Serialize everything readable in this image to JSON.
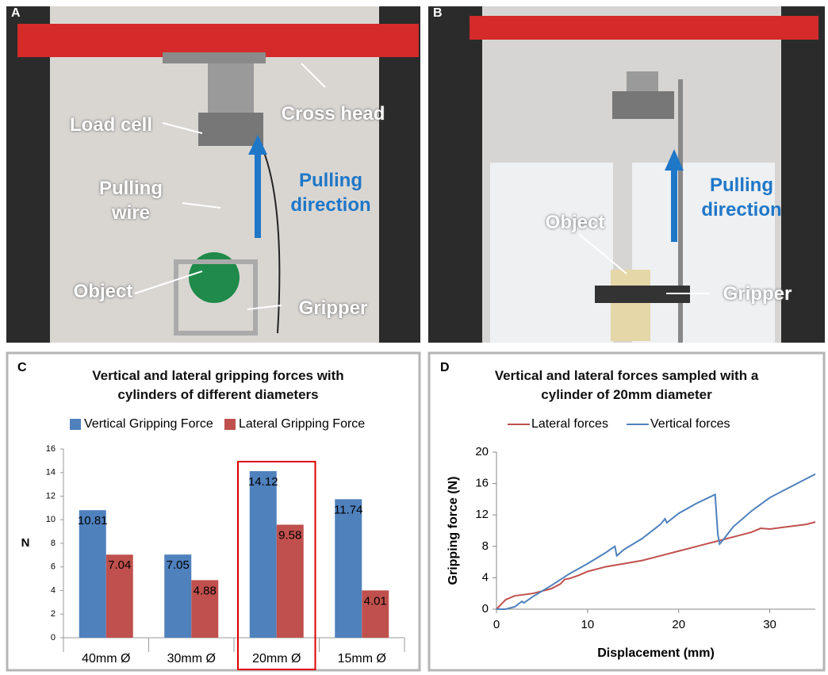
{
  "photos": [
    {
      "panel": "A",
      "labels": [
        "Cross head",
        "Load cell",
        "Pulling wire",
        "Pulling direction",
        "Object",
        "Gripper"
      ]
    },
    {
      "panel": "B",
      "labels": [
        "Pulling direction",
        "Object",
        "Gripper"
      ]
    }
  ],
  "chart_data": [
    {
      "panel": "C",
      "type": "bar",
      "title": "Vertical and lateral gripping forces with cylinders of different diameters",
      "categories": [
        "40mm Ø",
        "30mm Ø",
        "20mm Ø",
        "15mm Ø"
      ],
      "ylabel": "N",
      "ylim": [
        0,
        16
      ],
      "yticks": [
        0,
        2,
        4,
        6,
        8,
        10,
        12,
        14,
        16
      ],
      "grid": false,
      "highlight": 2,
      "series": [
        {
          "name": "Vertical Gripping Force",
          "color": "#4f81bd",
          "values": [
            10.81,
            7.05,
            14.12,
            11.74
          ]
        },
        {
          "name": "Lateral Gripping Force",
          "color": "#c0504d",
          "values": [
            7.04,
            4.88,
            9.58,
            4.01
          ]
        }
      ]
    },
    {
      "panel": "D",
      "type": "line",
      "title": "Vertical and lateral forces sampled with a cylinder of 20mm diameter",
      "xlabel": "Displacement (mm)",
      "ylabel": "Gripping force (N)",
      "xlim": [
        0,
        35
      ],
      "xticks": [
        0,
        10,
        20,
        30
      ],
      "ylim": [
        0,
        20
      ],
      "yticks": [
        0,
        4,
        8,
        12,
        16,
        20
      ],
      "grid": false,
      "series": [
        {
          "name": "Lateral forces",
          "color": "#c0504d",
          "x": [
            0,
            1,
            2,
            4,
            6,
            7,
            7.5,
            8,
            9,
            10,
            12,
            14,
            15,
            16,
            18,
            20,
            22,
            24,
            26,
            28,
            29,
            30,
            32,
            34,
            35
          ],
          "values": [
            0,
            1.2,
            1.7,
            2.0,
            2.6,
            3.2,
            3.8,
            3.9,
            4.3,
            4.8,
            5.4,
            5.8,
            6.0,
            6.2,
            6.8,
            7.4,
            8.0,
            8.6,
            9.2,
            9.8,
            10.3,
            10.2,
            10.5,
            10.8,
            11.1
          ]
        },
        {
          "name": "Vertical forces",
          "color": "#4f81bd",
          "x": [
            0,
            1,
            2,
            2.8,
            3,
            4,
            6,
            8,
            10,
            12,
            13,
            13.2,
            14,
            16,
            18,
            18.5,
            18.7,
            20,
            22,
            24,
            24.3,
            24.5,
            25,
            26,
            28,
            30,
            32,
            34,
            35
          ],
          "values": [
            0,
            0,
            0.3,
            1.0,
            0.8,
            1.6,
            3.0,
            4.5,
            5.8,
            7.2,
            8.0,
            6.8,
            7.6,
            9.0,
            10.8,
            11.5,
            11.0,
            12.2,
            13.5,
            14.6,
            9.5,
            8.3,
            9.0,
            10.5,
            12.5,
            14.2,
            15.4,
            16.6,
            17.2
          ]
        }
      ]
    }
  ]
}
